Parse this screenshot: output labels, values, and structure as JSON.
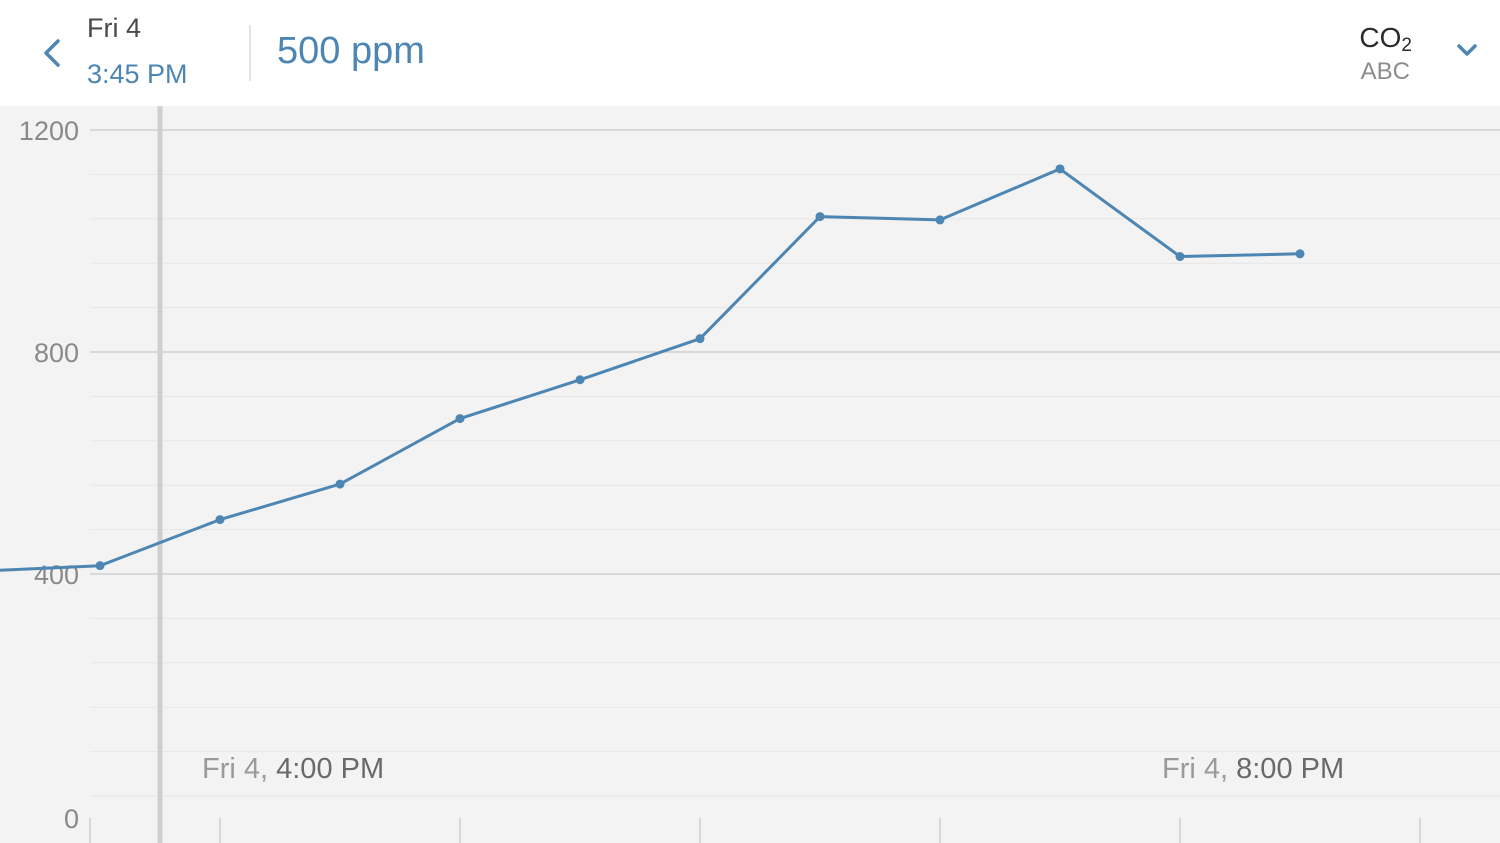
{
  "header": {
    "back_icon": "chevron-left-icon",
    "day": "Fri 4",
    "time": "3:45 PM",
    "value": "500 ppm",
    "sensor": {
      "name_base": "CO",
      "name_sub": "2",
      "subtitle": "ABC",
      "chevron_icon": "chevron-down-icon"
    }
  },
  "colors": {
    "accent": "#4d86b3",
    "plot_background": "#f3f3f3",
    "cursor_line": "#cfcfcf",
    "gridline_major": "#cfcfcf",
    "gridline_minor": "#e6e6e6"
  },
  "chart_data": {
    "type": "line",
    "title": "",
    "xlabel": "",
    "ylabel": "",
    "ylim": [
      0,
      1200
    ],
    "yticks": [
      0,
      400,
      800,
      1200
    ],
    "y_minor_step": 80,
    "grid": true,
    "x_unit": "time (Fri 4)",
    "x_range": [
      "3:05 PM",
      "9:20 PM"
    ],
    "x_tick_step_minutes": 60,
    "x_ticks": [
      "4:00 PM",
      "5:00 PM",
      "6:00 PM",
      "7:00 PM",
      "8:00 PM",
      "9:00 PM"
    ],
    "x_tick_labels": [
      {
        "at": "4:00 PM",
        "day": "Fri 4,",
        "time": "4:00 PM"
      },
      {
        "at": "8:00 PM",
        "day": "Fri 4,",
        "time": "8:00 PM"
      }
    ],
    "cursor": {
      "x": "3:45 PM",
      "value": 500
    },
    "series": [
      {
        "color": "#4d86b3",
        "points": [
          {
            "x": "3:00 PM",
            "y": 405
          },
          {
            "x": "3:30 PM",
            "y": 415
          },
          {
            "x": "4:00 PM",
            "y": 498
          },
          {
            "x": "4:30 PM",
            "y": 562
          },
          {
            "x": "5:00 PM",
            "y": 680
          },
          {
            "x": "5:30 PM",
            "y": 750
          },
          {
            "x": "6:00 PM",
            "y": 824
          },
          {
            "x": "6:30 PM",
            "y": 1044
          },
          {
            "x": "7:00 PM",
            "y": 1038
          },
          {
            "x": "7:30 PM",
            "y": 1130
          },
          {
            "x": "8:00 PM",
            "y": 972
          },
          {
            "x": "8:30 PM",
            "y": 977
          }
        ]
      }
    ]
  }
}
